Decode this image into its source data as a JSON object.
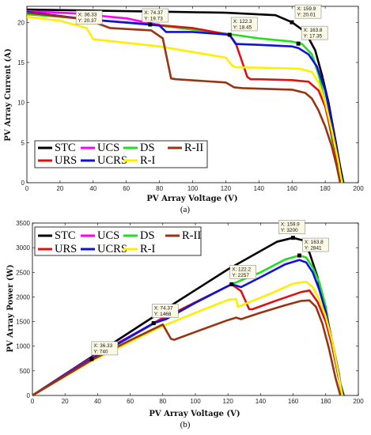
{
  "chart_data": [
    {
      "type": "line",
      "panel_label": "(a)",
      "xlabel": "PV Array Voltage (V)",
      "ylabel": "PV Array Current (A)",
      "xlim": [
        0,
        200
      ],
      "ylim": [
        0,
        22
      ],
      "xticks": [
        0,
        20,
        40,
        60,
        80,
        100,
        120,
        140,
        160,
        180,
        200
      ],
      "yticks": [
        0,
        5,
        10,
        15,
        20
      ],
      "legend_position": "bottom-left",
      "series": [
        {
          "name": "STC",
          "color": "#000000",
          "x": [
            0,
            30,
            60,
            90,
            120,
            150,
            160,
            168,
            174,
            178,
            182,
            186,
            189,
            191
          ],
          "y": [
            21.6,
            21.5,
            21.4,
            21.3,
            21.2,
            20.9,
            20.01,
            18.8,
            16.5,
            13.5,
            10.0,
            5.5,
            2.0,
            0
          ]
        },
        {
          "name": "UCS",
          "color": "#ff00ff",
          "x": [
            0,
            30,
            60,
            74,
            78,
            80
          ],
          "y": [
            21.4,
            21.1,
            20.5,
            19.9,
            19.75,
            19.73
          ]
        },
        {
          "name": "DS",
          "color": "#22dd22",
          "x": [
            0,
            20,
            36.33,
            80,
            120,
            140,
            160,
            166,
            172,
            176,
            180,
            184,
            188,
            190.5
          ],
          "y": [
            21.0,
            20.7,
            20.37,
            19.6,
            18.6,
            18.0,
            17.6,
            17.3,
            16.0,
            13.5,
            10.0,
            5.5,
            2.0,
            0
          ]
        },
        {
          "name": "URS",
          "color": "#dd1111",
          "x": [
            0,
            36.33,
            60,
            100,
            122.3,
            126,
            130,
            133,
            135,
            140,
            160,
            170,
            176,
            180,
            184,
            188,
            190
          ],
          "y": [
            21.3,
            20.37,
            20.0,
            19.3,
            18.45,
            17.4,
            15.0,
            13.2,
            12.9,
            12.9,
            12.8,
            12.6,
            11.5,
            9.5,
            6.0,
            2.0,
            0
          ]
        },
        {
          "name": "UCRS",
          "color": "#1111dd",
          "x": [
            0,
            36.33,
            74.37,
            80,
            84,
            100,
            122.3,
            126,
            140,
            160,
            163.8,
            170,
            175,
            180,
            184,
            187,
            190
          ],
          "y": [
            21.3,
            20.37,
            19.73,
            19.6,
            18.8,
            18.8,
            18.45,
            17.3,
            17.2,
            17.0,
            16.8,
            16.0,
            14.5,
            11.5,
            7.5,
            4.0,
            0
          ]
        },
        {
          "name": "R-I",
          "color": "#ffee00",
          "x": [
            0,
            20,
            36,
            40,
            80,
            120,
            124,
            126,
            150,
            165,
            172,
            176,
            180,
            184,
            188,
            190
          ],
          "y": [
            20.7,
            20.2,
            19.3,
            17.9,
            17.0,
            15.6,
            14.6,
            14.4,
            14.3,
            14.2,
            13.8,
            12.5,
            10.0,
            6.5,
            2.5,
            0
          ]
        },
        {
          "name": "R-II",
          "color": "#993311",
          "x": [
            0,
            36.33,
            50,
            75,
            82,
            85,
            87,
            90,
            120,
            125,
            130,
            160,
            168,
            172,
            176,
            180,
            184,
            187,
            189
          ],
          "y": [
            21.2,
            20.37,
            19.3,
            19.0,
            18.0,
            15.0,
            13.0,
            12.9,
            12.5,
            11.9,
            11.8,
            11.6,
            11.2,
            10.5,
            9.0,
            7.0,
            4.5,
            2.0,
            0
          ]
        }
      ],
      "datatips": [
        {
          "x": 74.37,
          "y": 19.73,
          "line1": "X: 74.37",
          "line2": "Y: 19.73"
        },
        {
          "x": 36.33,
          "y": 20.37,
          "line1": "X: 36.33",
          "line2": "Y: 20.37"
        },
        {
          "x": 122.3,
          "y": 18.45,
          "line1": "X: 122.3",
          "line2": "Y: 18.45"
        },
        {
          "x": 159.9,
          "y": 20.01,
          "line1": "X: 159.9",
          "line2": "Y: 20.01"
        },
        {
          "x": 163.8,
          "y": 17.35,
          "line1": "X: 163.8",
          "line2": "Y: 17.35"
        }
      ]
    },
    {
      "type": "line",
      "panel_label": "(b)",
      "xlabel": "PV Array Voltage (V)",
      "ylabel": "PV Array Power (W)",
      "xlim": [
        0,
        200
      ],
      "ylim": [
        0,
        3500
      ],
      "xticks": [
        0,
        20,
        40,
        60,
        80,
        100,
        120,
        140,
        160,
        180,
        200
      ],
      "yticks": [
        0,
        500,
        1000,
        1500,
        2000,
        2500,
        3000,
        3500
      ],
      "legend_position": "top-left",
      "series": [
        {
          "name": "STC",
          "color": "#000000",
          "x": [
            0,
            40,
            80,
            120,
            150,
            159.9,
            166,
            170,
            175,
            180,
            184,
            188,
            191
          ],
          "y": [
            0,
            860,
            1720,
            2560,
            3120,
            3200,
            3150,
            2900,
            2400,
            1700,
            1000,
            350,
            0
          ]
        },
        {
          "name": "UCS",
          "color": "#ff00ff",
          "x": [
            0,
            40,
            74.37,
            80
          ],
          "y": [
            0,
            840,
            1468,
            1580
          ]
        },
        {
          "name": "DS",
          "color": "#22dd22",
          "x": [
            0,
            36.33,
            80,
            122.2,
            140,
            155,
            163.8,
            168,
            172,
            176,
            180,
            184,
            188,
            190.5
          ],
          "y": [
            0,
            740,
            1560,
            2257,
            2500,
            2760,
            2841,
            2800,
            2600,
            2300,
            1800,
            1000,
            380,
            0
          ]
        },
        {
          "name": "URS",
          "color": "#dd1111",
          "x": [
            0,
            36.33,
            74.37,
            122.2,
            128,
            133,
            135,
            150,
            165,
            170,
            175,
            180,
            184,
            188,
            190
          ],
          "y": [
            0,
            740,
            1468,
            2257,
            2120,
            1750,
            1750,
            1930,
            2100,
            2130,
            1900,
            1500,
            1000,
            380,
            0
          ]
        },
        {
          "name": "UCRS",
          "color": "#1111dd",
          "x": [
            0,
            36.33,
            74.37,
            82,
            100,
            122.2,
            128,
            140,
            155,
            163.8,
            168,
            172,
            176,
            180,
            184,
            188,
            190
          ],
          "y": [
            0,
            740,
            1468,
            1550,
            1880,
            2257,
            2200,
            2400,
            2660,
            2750,
            2700,
            2500,
            2150,
            1700,
            1100,
            450,
            0
          ]
        },
        {
          "name": "R-I",
          "color": "#ffee00",
          "x": [
            0,
            36.33,
            78,
            100,
            120,
            125,
            126,
            145,
            160,
            168,
            172,
            176,
            180,
            184,
            188,
            190
          ],
          "y": [
            0,
            700,
            1380,
            1680,
            1940,
            1960,
            1800,
            2050,
            2270,
            2310,
            2200,
            1950,
            1600,
            1100,
            400,
            0
          ]
        },
        {
          "name": "R-II",
          "color": "#993311",
          "x": [
            0,
            36.33,
            60,
            80,
            85,
            87,
            100,
            120,
            125,
            128,
            140,
            155,
            165,
            170,
            174,
            178,
            182,
            186,
            189
          ],
          "y": [
            0,
            720,
            1120,
            1440,
            1150,
            1130,
            1290,
            1530,
            1580,
            1550,
            1680,
            1830,
            1920,
            1930,
            1800,
            1450,
            950,
            350,
            0
          ]
        }
      ],
      "datatips": [
        {
          "x": 36.33,
          "y": 740,
          "line1": "X: 36.33",
          "line2": "Y: 740"
        },
        {
          "x": 74.37,
          "y": 1468,
          "line1": "X: 74.37",
          "line2": "Y: 1468"
        },
        {
          "x": 122.2,
          "y": 2257,
          "line1": "X: 122.2",
          "line2": "Y: 2257"
        },
        {
          "x": 159.9,
          "y": 3200,
          "line1": "X: 159.9",
          "line2": "Y: 3200"
        },
        {
          "x": 163.8,
          "y": 2841,
          "line1": "X: 163.8",
          "line2": "Y: 2841"
        }
      ]
    }
  ]
}
